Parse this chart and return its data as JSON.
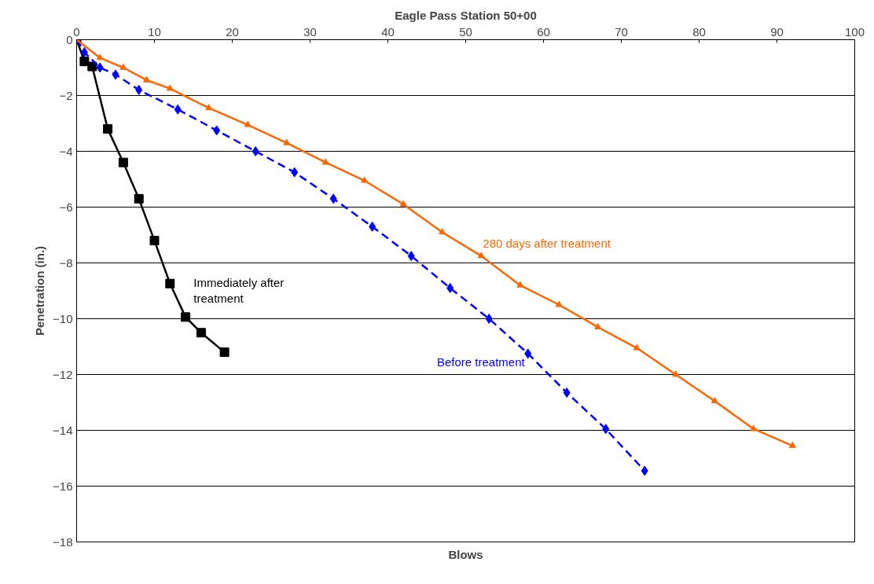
{
  "chart_data": {
    "type": "line",
    "title": "Eagle Pass Station 50+00",
    "xlabel": "Blows",
    "ylabel": "Penetration (in.)",
    "xlim": [
      0,
      100
    ],
    "xticks": [
      0,
      10,
      20,
      30,
      40,
      50,
      60,
      70,
      80,
      90,
      100
    ],
    "ylim": [
      -18,
      0
    ],
    "yticks": [
      -18,
      -16,
      -14,
      -12,
      -10,
      -8,
      -6,
      -4,
      -2,
      0
    ],
    "grid": "y",
    "legend": false,
    "series": [
      {
        "name": "Immediately after treatment",
        "color": "#000000",
        "marker": "square",
        "line_style": "solid",
        "x": [
          0,
          1,
          2,
          4,
          6,
          8,
          10,
          12,
          14,
          16,
          19
        ],
        "values": [
          0,
          -0.78,
          -0.96,
          -3.2,
          -4.4,
          -5.7,
          -7.2,
          -8.74,
          -9.94,
          -10.5,
          -11.2
        ]
      },
      {
        "name": "Before treatment",
        "color": "#0000ff",
        "marker": "diamond",
        "line_style": "dashed",
        "x": [
          0,
          1,
          3,
          5,
          8,
          13,
          18,
          23,
          28,
          33,
          38,
          43,
          48,
          53,
          58,
          63,
          68,
          73
        ],
        "values": [
          0,
          -0.45,
          -1.0,
          -1.25,
          -1.8,
          -2.5,
          -3.25,
          -4.0,
          -4.75,
          -5.7,
          -6.7,
          -7.75,
          -8.9,
          -10.0,
          -11.25,
          -12.65,
          -13.95,
          -15.45
        ]
      },
      {
        "name": "280 days after treatment",
        "color": "#ff6600",
        "marker": "triangle",
        "line_style": "solid",
        "x": [
          0,
          3,
          6,
          9,
          12,
          17,
          22,
          27,
          32,
          37,
          42,
          47,
          52,
          57,
          62,
          67,
          72,
          77,
          82,
          87,
          92
        ],
        "values": [
          0,
          -0.65,
          -1.0,
          -1.45,
          -1.75,
          -2.45,
          -3.05,
          -3.7,
          -4.4,
          -5.05,
          -5.9,
          -6.9,
          -7.75,
          -8.8,
          -9.5,
          -10.3,
          -11.05,
          -12.0,
          -12.95,
          -13.95,
          -14.55
        ]
      }
    ]
  }
}
